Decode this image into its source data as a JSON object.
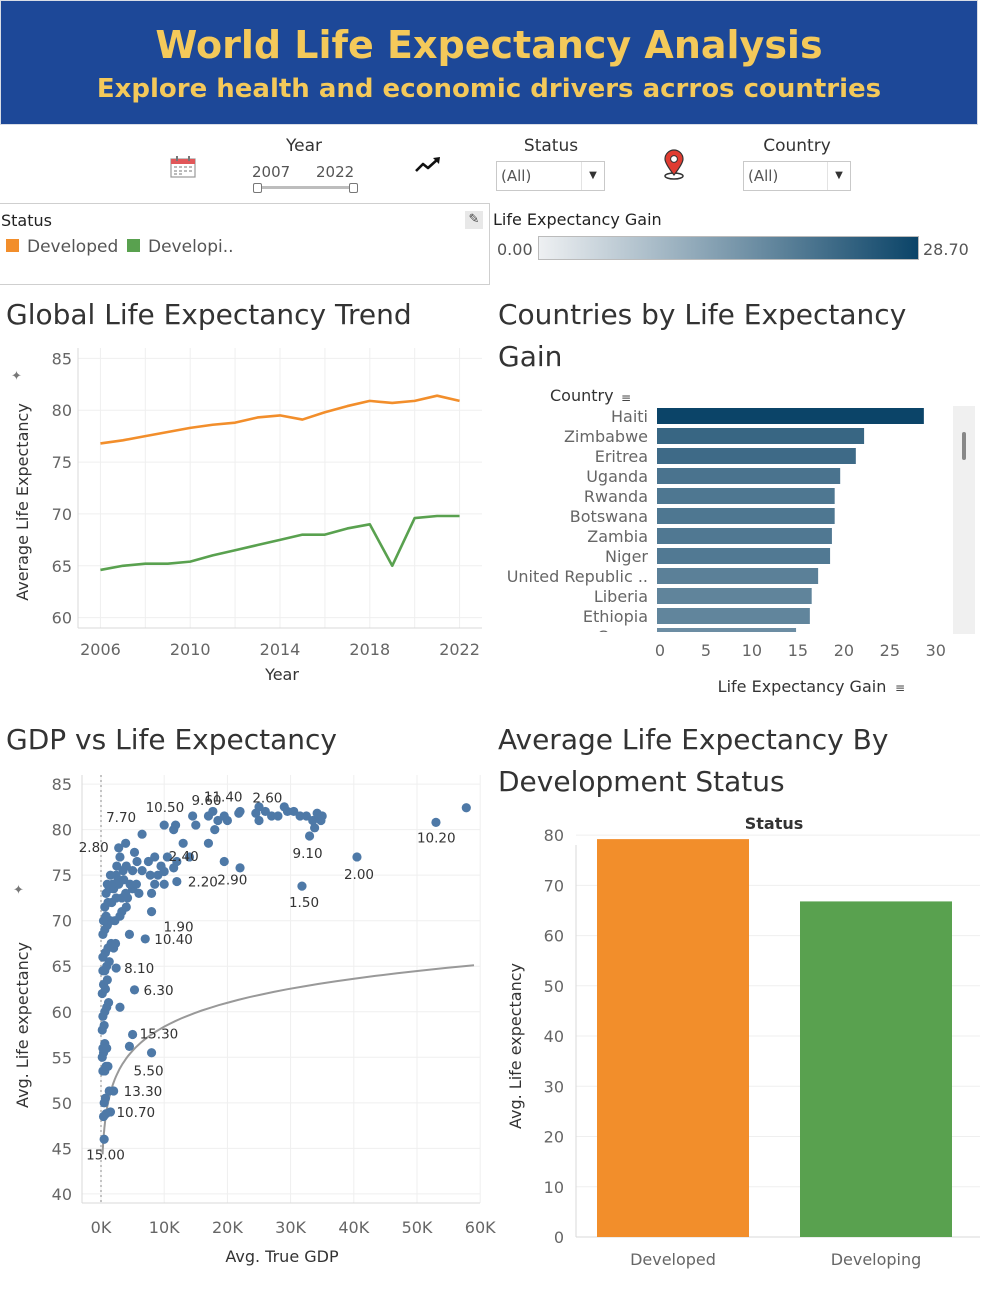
{
  "header": {
    "title": "World Life Expectancy Analysis",
    "subtitle": "Explore health and economic drivers acrros countries"
  },
  "filters": {
    "year": {
      "label": "Year",
      "start": "2007",
      "end": "2022"
    },
    "status": {
      "label": "Status",
      "value": "(All)"
    },
    "country": {
      "label": "Country",
      "value": "(All)"
    }
  },
  "legend": {
    "title": "Status",
    "items": [
      {
        "label": "Developed",
        "color": "#f28e2b"
      },
      {
        "label": "Developi..",
        "color": "#59a14f"
      }
    ]
  },
  "color_legend": {
    "title": "Life Expectancy Gain",
    "min": "0.00",
    "max": "28.70",
    "color_low": "#eef0f2",
    "color_high": "#0b4468"
  },
  "icons": {
    "calendar": "calendar-icon",
    "trend": "trend-arrow-icon",
    "map_pin": "map-pin-icon",
    "pin": "pin-icon",
    "sort": "sort-icon",
    "edit": "edit-icon"
  },
  "chart_data": [
    {
      "title": "Global Life Expectancy Trend",
      "type": "line",
      "xlabel": "Year",
      "ylabel": "Average Life Expectancy",
      "xlim": [
        2005,
        2023
      ],
      "ylim": [
        59,
        86
      ],
      "xticks": [
        "2006",
        "2010",
        "2014",
        "2018",
        "2022"
      ],
      "yticks": [
        "60",
        "65",
        "70",
        "75",
        "80",
        "85"
      ],
      "grid": true,
      "series": [
        {
          "name": "Developed",
          "color": "#f28e2b",
          "x": [
            2006,
            2007,
            2008,
            2009,
            2010,
            2011,
            2012,
            2013,
            2014,
            2015,
            2016,
            2017,
            2018,
            2019,
            2020,
            2021,
            2022
          ],
          "y": [
            76.8,
            77.1,
            77.5,
            77.9,
            78.3,
            78.6,
            78.8,
            79.3,
            79.5,
            79.1,
            79.8,
            80.4,
            80.9,
            80.7,
            80.9,
            81.4,
            80.9
          ]
        },
        {
          "name": "Developing",
          "color": "#59a14f",
          "x": [
            2006,
            2007,
            2008,
            2009,
            2010,
            2011,
            2012,
            2013,
            2014,
            2015,
            2016,
            2017,
            2018,
            2019,
            2020,
            2021,
            2022
          ],
          "y": [
            64.6,
            65.0,
            65.2,
            65.2,
            65.4,
            66.0,
            66.5,
            67.0,
            67.5,
            68.0,
            68.0,
            68.6,
            69.0,
            65.0,
            69.6,
            69.8,
            69.8
          ]
        }
      ]
    },
    {
      "title": "Countries by Life Expectancy Gain",
      "type": "bar",
      "orientation": "horizontal",
      "row_header": "Country",
      "xlabel": "Life Expectancy Gain",
      "xlim": [
        0,
        31
      ],
      "xticks": [
        "0",
        "5",
        "10",
        "15",
        "20",
        "25",
        "30"
      ],
      "categories": [
        "Haiti",
        "Zimbabwe",
        "Eritrea",
        "Uganda",
        "Rwanda",
        "Botswana",
        "Zambia",
        "Niger",
        "United Republic ..",
        "Liberia",
        "Ethiopia",
        "Congo"
      ],
      "values": [
        28.7,
        22.2,
        21.3,
        19.6,
        19.0,
        19.0,
        18.7,
        18.5,
        17.2,
        16.5,
        16.3,
        14.8
      ],
      "color_scale": [
        "#eef0f2",
        "#0b4468"
      ],
      "color_range": [
        0,
        28.7
      ]
    },
    {
      "title": "GDP vs Life Expectancy",
      "type": "scatter",
      "xlabel": "Avg. True GDP",
      "ylabel": "Avg. Life expectancy",
      "xlim": [
        -3000,
        60000
      ],
      "ylim": [
        39,
        86
      ],
      "xticks": [
        "0K",
        "10K",
        "20K",
        "30K",
        "40K",
        "50K",
        "60K"
      ],
      "yticks": [
        "40",
        "45",
        "50",
        "55",
        "60",
        "65",
        "70",
        "75",
        "80",
        "85"
      ],
      "point_color": "#4e79a7",
      "trend_line": "logarithmic",
      "points": [
        [
          500,
          46.0
        ],
        [
          400,
          48.5
        ],
        [
          800,
          48.8
        ],
        [
          500,
          50.0
        ],
        [
          700,
          50.5
        ],
        [
          1500,
          49.0
        ],
        [
          1300,
          51.3
        ],
        [
          2000,
          51.3
        ],
        [
          300,
          53.5
        ],
        [
          600,
          53.5
        ],
        [
          800,
          54.0
        ],
        [
          1100,
          54.0
        ],
        [
          200,
          55.0
        ],
        [
          400,
          55.5
        ],
        [
          300,
          56.0
        ],
        [
          600,
          56.5
        ],
        [
          900,
          56.0
        ],
        [
          4500,
          56.2
        ],
        [
          5000,
          57.5
        ],
        [
          8000,
          55.5
        ],
        [
          200,
          58.0
        ],
        [
          500,
          58.5
        ],
        [
          300,
          59.5
        ],
        [
          600,
          60.0
        ],
        [
          900,
          60.5
        ],
        [
          1200,
          61.0
        ],
        [
          3000,
          60.5
        ],
        [
          5300,
          62.4
        ],
        [
          200,
          62.0
        ],
        [
          400,
          63.0
        ],
        [
          700,
          62.5
        ],
        [
          1000,
          63.5
        ],
        [
          300,
          64.5
        ],
        [
          600,
          64.5
        ],
        [
          900,
          65.0
        ],
        [
          1300,
          65.5
        ],
        [
          2400,
          64.8
        ],
        [
          300,
          66.0
        ],
        [
          700,
          66.5
        ],
        [
          1100,
          67.0
        ],
        [
          1600,
          67.5
        ],
        [
          2000,
          67.0
        ],
        [
          2300,
          67.5
        ],
        [
          4500,
          68.5
        ],
        [
          300,
          68.5
        ],
        [
          600,
          69.0
        ],
        [
          1000,
          69.5
        ],
        [
          1500,
          70.0
        ],
        [
          2200,
          70.0
        ],
        [
          3000,
          70.5
        ],
        [
          400,
          70.0
        ],
        [
          800,
          70.5
        ],
        [
          3300,
          71.0
        ],
        [
          4000,
          71.5
        ],
        [
          7000,
          68.0
        ],
        [
          8000,
          71.0
        ],
        [
          600,
          71.5
        ],
        [
          1100,
          72.0
        ],
        [
          1700,
          72.0
        ],
        [
          2400,
          72.5
        ],
        [
          3300,
          72.5
        ],
        [
          4200,
          72.5
        ],
        [
          800,
          73.0
        ],
        [
          1300,
          73.5
        ],
        [
          2000,
          73.5
        ],
        [
          2800,
          74.0
        ],
        [
          3900,
          73.0
        ],
        [
          5000,
          73.5
        ],
        [
          6000,
          73.0
        ],
        [
          8000,
          73.0
        ],
        [
          1000,
          74.0
        ],
        [
          1800,
          74.0
        ],
        [
          2700,
          74.5
        ],
        [
          3600,
          74.5
        ],
        [
          4600,
          74.0
        ],
        [
          5600,
          74.0
        ],
        [
          8500,
          74.0
        ],
        [
          10000,
          74.0
        ],
        [
          12000,
          74.3
        ],
        [
          1500,
          75.0
        ],
        [
          2400,
          75.0
        ],
        [
          3500,
          75.5
        ],
        [
          5000,
          75.5
        ],
        [
          6500,
          75.5
        ],
        [
          7800,
          75.0
        ],
        [
          9000,
          75.0
        ],
        [
          10000,
          75.4
        ],
        [
          11500,
          75.8
        ],
        [
          2500,
          76.0
        ],
        [
          4000,
          76.0
        ],
        [
          5700,
          76.5
        ],
        [
          7500,
          76.5
        ],
        [
          9500,
          76.0
        ],
        [
          12000,
          76.5
        ],
        [
          14000,
          77.0
        ],
        [
          19500,
          76.5
        ],
        [
          22000,
          75.8
        ],
        [
          3000,
          77.0
        ],
        [
          5300,
          77.5
        ],
        [
          8500,
          77.0
        ],
        [
          10500,
          77.0
        ],
        [
          13000,
          78.5
        ],
        [
          17000,
          78.5
        ],
        [
          2800,
          78.0
        ],
        [
          3900,
          78.5
        ],
        [
          6500,
          79.5
        ],
        [
          10000,
          80.5
        ],
        [
          11500,
          80.0
        ],
        [
          11800,
          80.5
        ],
        [
          15000,
          80.5
        ],
        [
          18000,
          80.0
        ],
        [
          14500,
          81.5
        ],
        [
          17000,
          81.5
        ],
        [
          18500,
          81.0
        ],
        [
          19500,
          81.5
        ],
        [
          20000,
          81.0
        ],
        [
          17700,
          82.0
        ],
        [
          22000,
          82.0
        ],
        [
          25000,
          82.5
        ],
        [
          26000,
          82.0
        ],
        [
          27000,
          81.5
        ],
        [
          28000,
          81.5
        ],
        [
          29500,
          82.0
        ],
        [
          29000,
          82.5
        ],
        [
          30500,
          82.0
        ],
        [
          31500,
          81.5
        ],
        [
          32500,
          81.5
        ],
        [
          33500,
          81.0
        ],
        [
          34500,
          81.5
        ],
        [
          34800,
          81.0
        ],
        [
          34200,
          81.8
        ],
        [
          35000,
          81.5
        ],
        [
          33800,
          80.2
        ],
        [
          33000,
          79.3
        ],
        [
          25000,
          81.0
        ],
        [
          31800,
          73.8
        ],
        [
          40500,
          77.0
        ],
        [
          53000,
          80.8
        ],
        [
          57800,
          82.4
        ],
        [
          24500,
          81.8
        ],
        [
          21800,
          81.8
        ]
      ],
      "annotations": [
        {
          "text": "15.00",
          "x": 500,
          "y": 46.0
        },
        {
          "text": "10.70",
          "x": 1500,
          "y": 49.0
        },
        {
          "text": "13.30",
          "x": 2000,
          "y": 51.3
        },
        {
          "text": "5.50",
          "x": 8000,
          "y": 55.5
        },
        {
          "text": "15.30",
          "x": 5000,
          "y": 57.5
        },
        {
          "text": "6.30",
          "x": 5300,
          "y": 62.4
        },
        {
          "text": "8.10",
          "x": 2400,
          "y": 64.8
        },
        {
          "text": "10.40",
          "x": 7000,
          "y": 68.0
        },
        {
          "text": "1.90",
          "x": 8000,
          "y": 71.0
        },
        {
          "text": "2.20",
          "x": 12000,
          "y": 74.3
        },
        {
          "text": "2.90",
          "x": 19500,
          "y": 76.5
        },
        {
          "text": "1.50",
          "x": 31800,
          "y": 73.8
        },
        {
          "text": "2.00",
          "x": 40500,
          "y": 77.0
        },
        {
          "text": "2.40",
          "x": 11500,
          "y": 75.8
        },
        {
          "text": "2.80",
          "x": 2800,
          "y": 78.0
        },
        {
          "text": "11.40",
          "x": 17700,
          "y": 82.0
        },
        {
          "text": "7.70",
          "x": 6500,
          "y": 79.5
        },
        {
          "text": "10.50",
          "x": 11800,
          "y": 80.5
        },
        {
          "text": "9.60",
          "x": 17000,
          "y": 81.5
        },
        {
          "text": "2.60",
          "x": 26000,
          "y": 82.0
        },
        {
          "text": "9.10",
          "x": 33000,
          "y": 79.3
        },
        {
          "text": "10.20",
          "x": 53000,
          "y": 80.8
        }
      ]
    },
    {
      "title": "Average Life Expectancy By Development Status",
      "type": "bar",
      "column_header": "Status",
      "ylabel": "Avg. Life expectancy",
      "ylim": [
        0,
        84
      ],
      "yticks": [
        "0",
        "10",
        "20",
        "30",
        "40",
        "50",
        "60",
        "70",
        "80"
      ],
      "categories": [
        "Developed",
        "Developing"
      ],
      "values": [
        79.2,
        66.8
      ],
      "colors": [
        "#f28e2b",
        "#59a14f"
      ]
    }
  ]
}
